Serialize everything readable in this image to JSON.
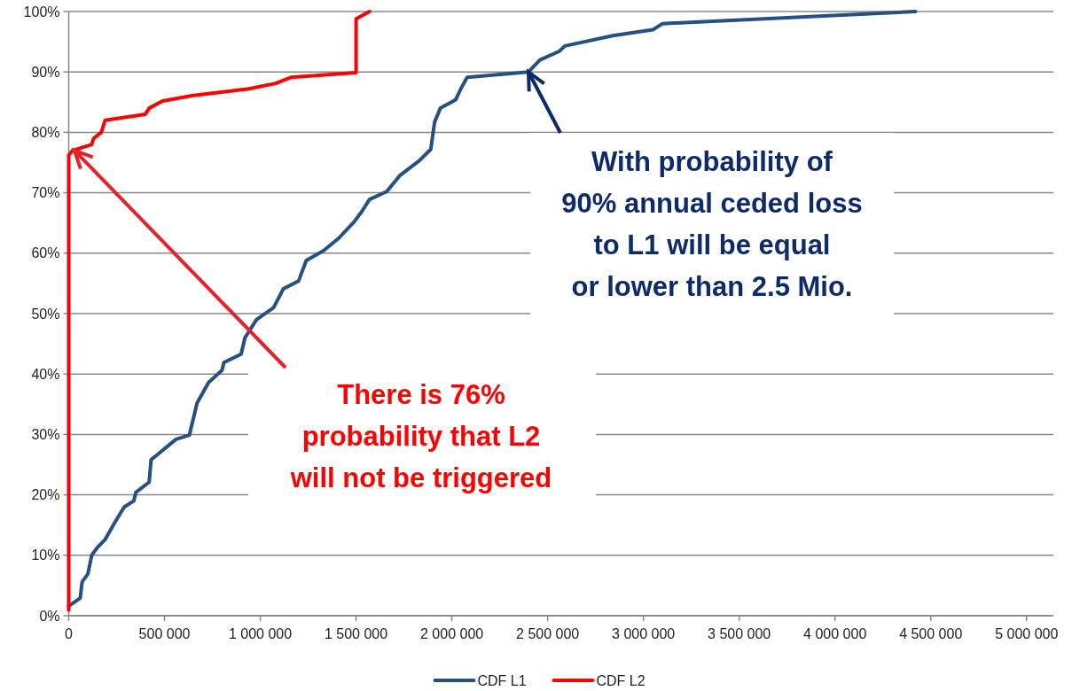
{
  "chart_data": {
    "type": "line",
    "xlim": [
      0,
      5140000
    ],
    "xticks": [
      {
        "value": 0,
        "label": "0"
      },
      {
        "value": 500000,
        "label": "500 000"
      },
      {
        "value": 1000000,
        "label": "1 000 000"
      },
      {
        "value": 1500000,
        "label": "1 500 000"
      },
      {
        "value": 2000000,
        "label": "2 000 000"
      },
      {
        "value": 2500000,
        "label": "2 500 000"
      },
      {
        "value": 3000000,
        "label": "3 000 000"
      },
      {
        "value": 3500000,
        "label": "3 500 000"
      },
      {
        "value": 4000000,
        "label": "4 000 000"
      },
      {
        "value": 4500000,
        "label": "4 500 000"
      },
      {
        "value": 5000000,
        "label": "5 000 000"
      }
    ],
    "ylim": [
      0,
      100
    ],
    "yticks": [
      {
        "value": 0,
        "label": "0%"
      },
      {
        "value": 10,
        "label": "10%"
      },
      {
        "value": 20,
        "label": "20%"
      },
      {
        "value": 30,
        "label": "30%"
      },
      {
        "value": 40,
        "label": "40%"
      },
      {
        "value": 50,
        "label": "50%"
      },
      {
        "value": 60,
        "label": "60%"
      },
      {
        "value": 70,
        "label": "70%"
      },
      {
        "value": 80,
        "label": "80%"
      },
      {
        "value": 90,
        "label": "90%"
      },
      {
        "value": 100,
        "label": "100%"
      }
    ],
    "grid": "y",
    "legend": "bottom",
    "marker": "none",
    "line_style": "solid",
    "series": [
      {
        "name": "CDF L1",
        "color": "#264f82",
        "x": [
          0,
          60000,
          70000,
          100000,
          120000,
          150000,
          190000,
          240000,
          290000,
          340000,
          350000,
          420000,
          430000,
          560000,
          630000,
          670000,
          730000,
          800000,
          810000,
          900000,
          920000,
          980000,
          1070000,
          1120000,
          1200000,
          1240000,
          1330000,
          1410000,
          1490000,
          1530000,
          1570000,
          1660000,
          1730000,
          1830000,
          1890000,
          1910000,
          1940000,
          2020000,
          2050000,
          2080000,
          2400000,
          2460000,
          2560000,
          2590000,
          2840000,
          3050000,
          3100000,
          4420000
        ],
        "values": [
          1.6,
          2.9,
          5.6,
          6.9,
          10,
          11.3,
          12.6,
          15.4,
          18,
          19,
          20.4,
          22.1,
          25.8,
          29.2,
          29.9,
          35.2,
          38.6,
          40.6,
          41.9,
          43.3,
          46,
          49,
          51,
          54.1,
          55.4,
          58.8,
          60.4,
          62.5,
          65.2,
          66.9,
          68.9,
          70.2,
          72.9,
          75.3,
          77.2,
          81.7,
          84,
          85.4,
          87.4,
          89.1,
          90,
          92,
          93.4,
          94.3,
          96,
          97,
          98,
          100
        ]
      },
      {
        "name": "CDF L2",
        "color": "#ff0000",
        "x": [
          0,
          0,
          20000,
          120000,
          130000,
          170000,
          190000,
          400000,
          420000,
          490000,
          650000,
          940000,
          1080000,
          1160000,
          1500000,
          1500000,
          1570000
        ],
        "values": [
          0.9,
          76.2,
          77,
          78,
          79,
          80,
          82,
          83,
          84,
          85.2,
          86.1,
          87.2,
          88.1,
          89.1,
          89.9,
          98.8,
          100
        ]
      }
    ],
    "annotations": [
      {
        "text": "With probability of 90% annual ceded loss to L1 will be equal or lower than 2.5 Mio.",
        "x": 2400000,
        "y": 90
      },
      {
        "text": "There is 76% probability that L2 will not be triggered",
        "x": 30000,
        "y": 77
      }
    ]
  }
}
